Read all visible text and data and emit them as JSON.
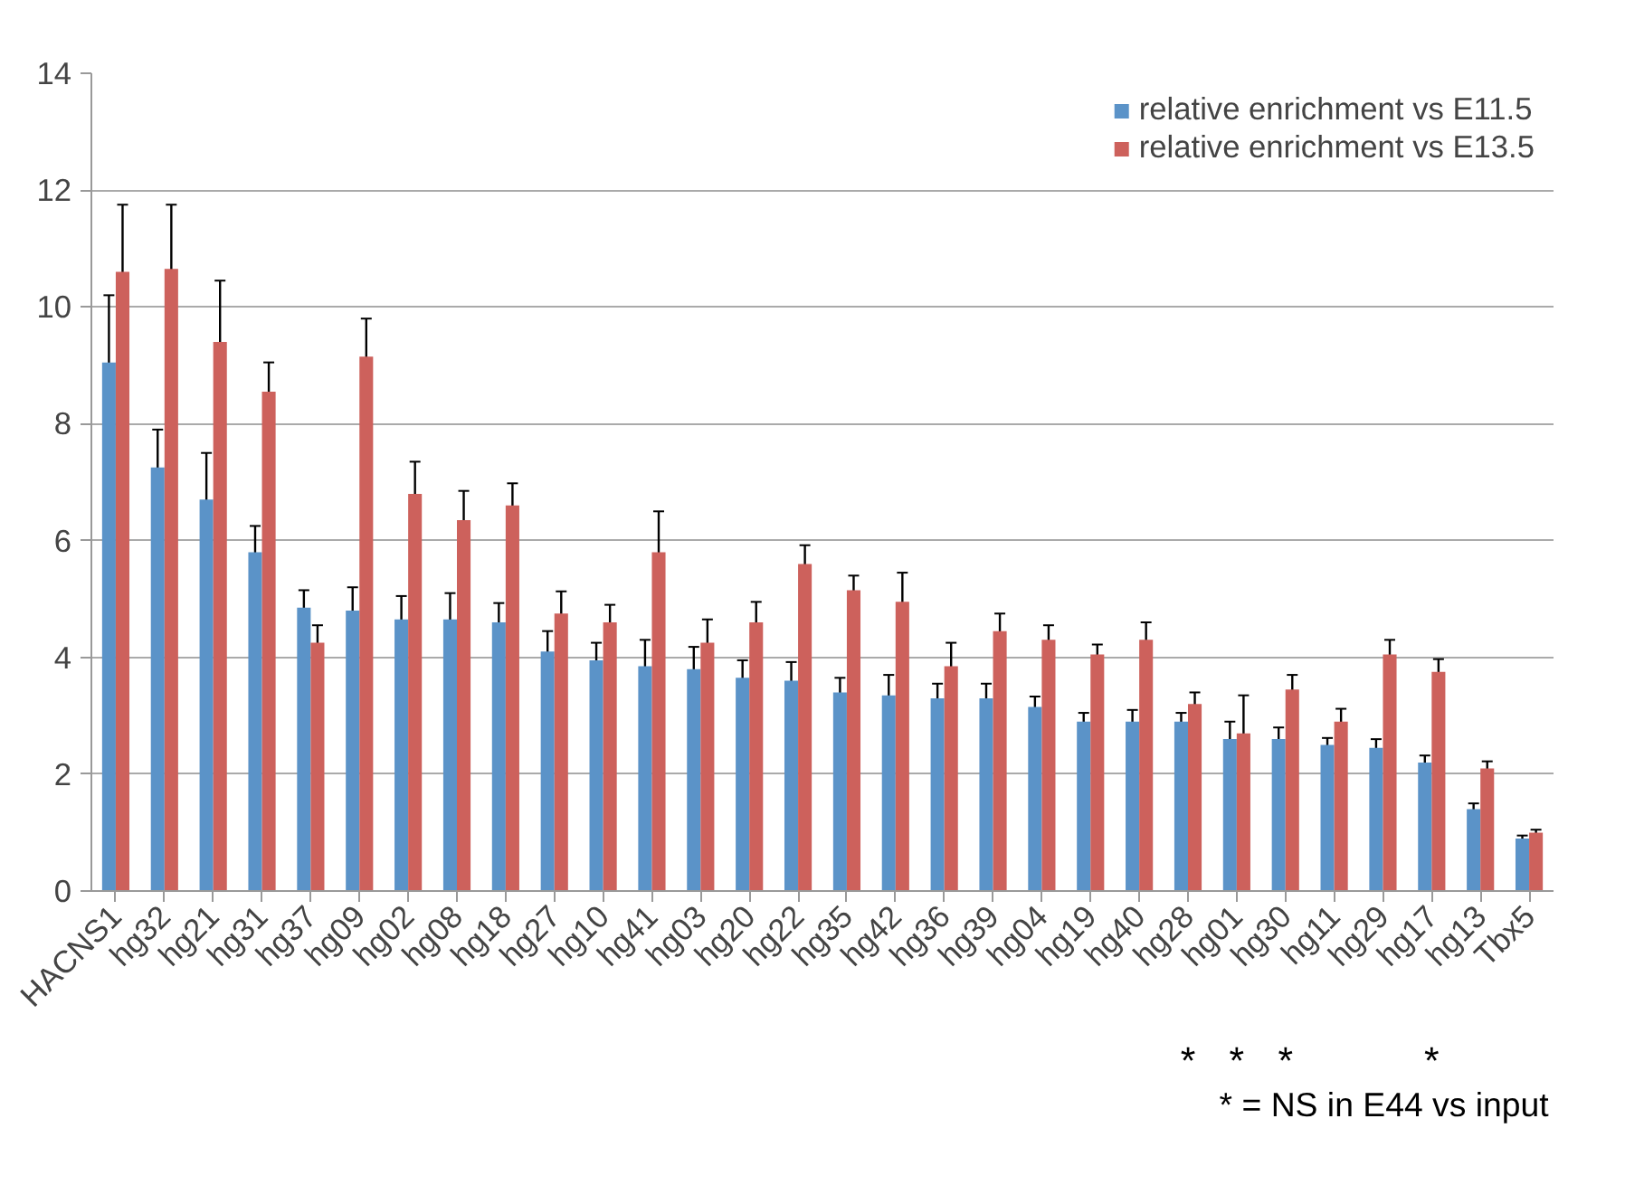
{
  "chart_data": {
    "type": "bar",
    "categories": [
      "HACNS1",
      "hg32",
      "hg21",
      "hg31",
      "hg37",
      "hg09",
      "hg02",
      "hg08",
      "hg18",
      "hg27",
      "hg10",
      "hg41",
      "hg03",
      "hg20",
      "hg22",
      "hg35",
      "hg42",
      "hg36",
      "hg39",
      "hg04",
      "hg19",
      "hg40",
      "hg28",
      "hg01",
      "hg30",
      "hg11",
      "hg29",
      "hg17",
      "hg13",
      "Tbx5"
    ],
    "series": [
      {
        "name": "relative enrichment vs E11.5",
        "color": "#5b93c8",
        "values": [
          9.05,
          7.25,
          6.7,
          5.8,
          4.85,
          4.8,
          4.65,
          4.65,
          4.6,
          4.1,
          3.95,
          3.85,
          3.8,
          3.65,
          3.6,
          3.4,
          3.35,
          3.3,
          3.3,
          3.15,
          2.9,
          2.9,
          2.9,
          2.6,
          2.6,
          2.5,
          2.45,
          2.2,
          1.4,
          0.9
        ],
        "errors": [
          1.15,
          0.65,
          0.8,
          0.45,
          0.3,
          0.4,
          0.4,
          0.45,
          0.33,
          0.35,
          0.3,
          0.45,
          0.38,
          0.3,
          0.32,
          0.25,
          0.35,
          0.25,
          0.25,
          0.18,
          0.15,
          0.2,
          0.15,
          0.3,
          0.2,
          0.12,
          0.15,
          0.12,
          0.1,
          0.05
        ]
      },
      {
        "name": "relative enrichment vs E13.5",
        "color": "#cd615c",
        "values": [
          10.6,
          10.65,
          9.4,
          8.55,
          4.25,
          9.15,
          6.8,
          6.35,
          6.6,
          4.75,
          4.6,
          5.8,
          4.25,
          4.6,
          5.6,
          5.15,
          4.95,
          3.85,
          4.45,
          4.3,
          4.05,
          4.3,
          3.2,
          2.7,
          3.45,
          2.9,
          4.05,
          3.75,
          2.1,
          1.0
        ],
        "errors": [
          1.15,
          1.1,
          1.05,
          0.5,
          0.3,
          0.65,
          0.55,
          0.5,
          0.38,
          0.38,
          0.3,
          0.7,
          0.4,
          0.35,
          0.32,
          0.25,
          0.5,
          0.4,
          0.3,
          0.25,
          0.17,
          0.3,
          0.2,
          0.65,
          0.25,
          0.22,
          0.25,
          0.22,
          0.12,
          0.05
        ]
      }
    ],
    "ylim": [
      0,
      14
    ],
    "yticks": [
      0,
      2,
      4,
      6,
      8,
      10,
      12,
      14
    ],
    "grid": "y",
    "legend": "top right",
    "annotations": [
      "*",
      "*",
      "*",
      "*",
      "* = NS in E44 vs input"
    ]
  }
}
